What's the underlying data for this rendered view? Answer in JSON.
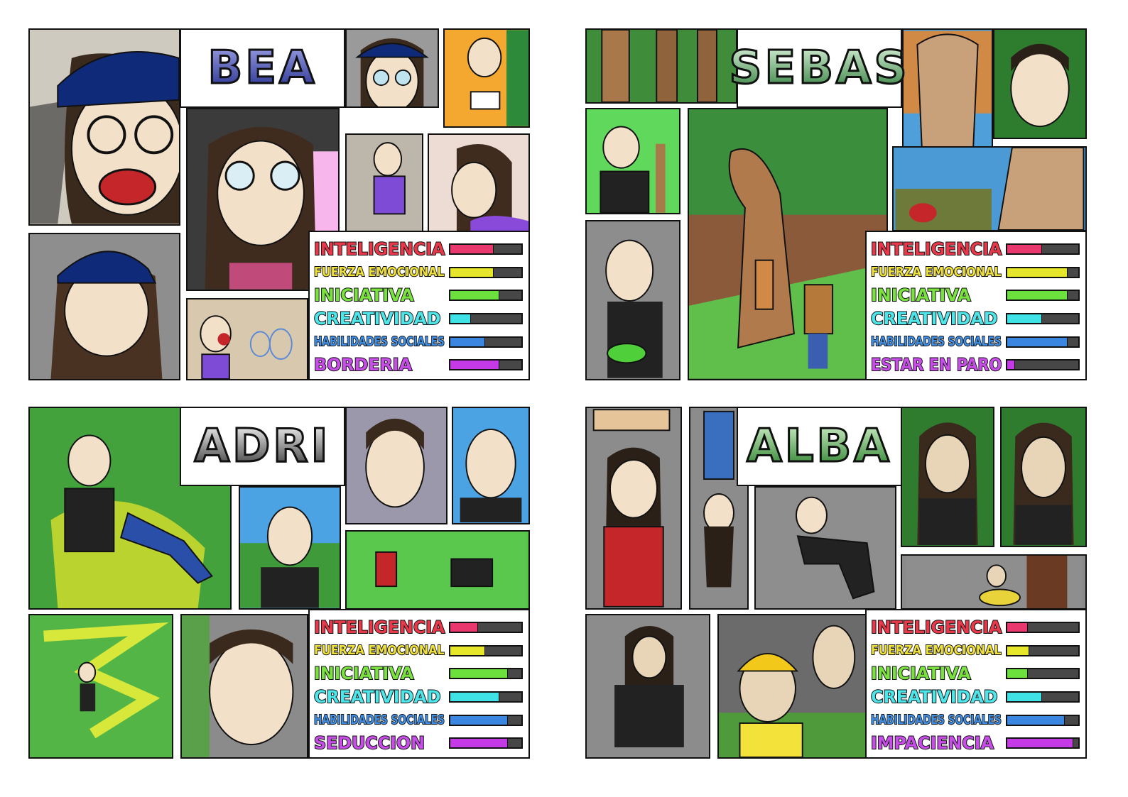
{
  "characters": [
    {
      "name": "BEA",
      "name_gradient": [
        "#9fa3e6",
        "#1f2a8a"
      ],
      "stats": [
        {
          "label": "INTELIGENCIA",
          "value": 0.6,
          "color": "#e8386e",
          "text_color": "#e8384a"
        },
        {
          "label": "FUERZA EMOCIONAL",
          "value": 0.6,
          "color": "#e6e62a",
          "text_color": "#f1e23a"
        },
        {
          "label": "INICIATIVA",
          "value": 0.68,
          "color": "#6ce03c",
          "text_color": "#79e23f"
        },
        {
          "label": "CREATIVIDAD",
          "value": 0.28,
          "color": "#3fe3e6",
          "text_color": "#4de6ea"
        },
        {
          "label": "HABILIDADES SOCIALES",
          "value": 0.48,
          "color": "#3a86e0",
          "text_color": "#3f8fe6"
        },
        {
          "label": "BORDERIA",
          "value": 0.68,
          "color": "#c43ae6",
          "text_color": "#c94ee9"
        }
      ]
    },
    {
      "name": "SEBAS",
      "name_gradient": [
        "#dff5df",
        "#2a7a36"
      ],
      "stats": [
        {
          "label": "INTELIGENCIA",
          "value": 0.48,
          "color": "#e8386e",
          "text_color": "#e8384a"
        },
        {
          "label": "FUERZA EMOCIONAL",
          "value": 0.84,
          "color": "#e6e62a",
          "text_color": "#f1e23a"
        },
        {
          "label": "INICIATIVA",
          "value": 0.84,
          "color": "#6ce03c",
          "text_color": "#79e23f"
        },
        {
          "label": "CREATIVIDAD",
          "value": 0.48,
          "color": "#3fe3e6",
          "text_color": "#4de6ea"
        },
        {
          "label": "HABILIDADES SOCIALES",
          "value": 0.84,
          "color": "#3a86e0",
          "text_color": "#3f8fe6"
        },
        {
          "label": "ESTAR EN PARO",
          "value": 0.1,
          "color": "#c43ae6",
          "text_color": "#c94ee9"
        }
      ]
    },
    {
      "name": "ADRI",
      "name_gradient": [
        "#ffffff",
        "#2b2b2b"
      ],
      "stats": [
        {
          "label": "INTELIGENCIA",
          "value": 0.38,
          "color": "#e8386e",
          "text_color": "#e8384a"
        },
        {
          "label": "FUERZA EMOCIONAL",
          "value": 0.48,
          "color": "#e6e62a",
          "text_color": "#f1e23a"
        },
        {
          "label": "INICIATIVA",
          "value": 0.8,
          "color": "#6ce03c",
          "text_color": "#79e23f"
        },
        {
          "label": "CREATIVIDAD",
          "value": 0.68,
          "color": "#3fe3e6",
          "text_color": "#4de6ea"
        },
        {
          "label": "HABILIDADES SOCIALES",
          "value": 0.8,
          "color": "#3a86e0",
          "text_color": "#3f8fe6"
        },
        {
          "label": "SEDUCCION",
          "value": 0.8,
          "color": "#c43ae6",
          "text_color": "#c94ee9"
        }
      ]
    },
    {
      "name": "ALBA",
      "name_gradient": [
        "#d8f5cf",
        "#1f7a22"
      ],
      "stats": [
        {
          "label": "INTELIGENCIA",
          "value": 0.28,
          "color": "#e8386e",
          "text_color": "#e8384a"
        },
        {
          "label": "FUERZA EMOCIONAL",
          "value": 0.3,
          "color": "#e6e62a",
          "text_color": "#f1e23a"
        },
        {
          "label": "INICIATIVA",
          "value": 0.28,
          "color": "#6ce03c",
          "text_color": "#79e23f"
        },
        {
          "label": "CREATIVIDAD",
          "value": 0.48,
          "color": "#3fe3e6",
          "text_color": "#4de6ea"
        },
        {
          "label": "HABILIDADES SOCIALES",
          "value": 0.8,
          "color": "#3a86e0",
          "text_color": "#3f8fe6"
        },
        {
          "label": "IMPACIENCIA",
          "value": 0.92,
          "color": "#c43ae6",
          "text_color": "#c94ee9"
        }
      ]
    }
  ]
}
